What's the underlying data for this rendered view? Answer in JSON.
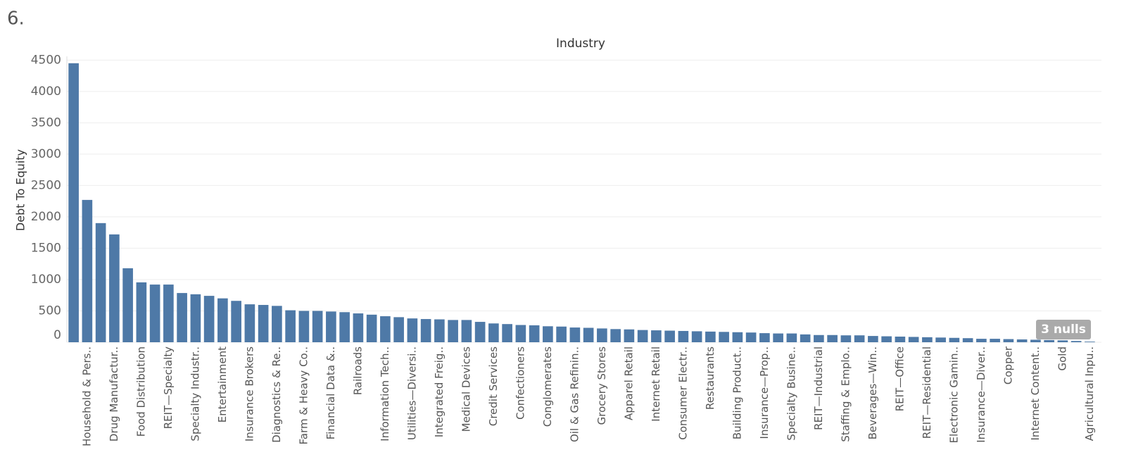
{
  "heading": "6.",
  "chart_data": {
    "type": "bar",
    "title": "Industry",
    "ylabel": "Debt To Equity",
    "annotation": "3 nulls",
    "color": "#4e79a7",
    "grid": true,
    "categories": [
      null,
      "Household & Pers..",
      null,
      "Drug Manufactur..",
      null,
      "Food Distribution",
      null,
      "REIT—Specialty",
      null,
      "Specialty Industr..",
      null,
      "Entertainment",
      null,
      "Insurance Brokers",
      null,
      "Diagnostics & Re..",
      null,
      "Farm & Heavy Co..",
      null,
      "Financial Data &..",
      null,
      "Railroads",
      null,
      "Information Tech..",
      null,
      "Utilities—Diversi..",
      null,
      "Integrated Freig..",
      null,
      "Medical Devices",
      null,
      "Credit Services",
      null,
      "Confectioners",
      null,
      "Conglomerates",
      null,
      "Oil & Gas Refinin..",
      null,
      "Grocery Stores",
      null,
      "Apparel Retail",
      null,
      "Internet Retail",
      null,
      "Consumer Electr..",
      null,
      "Restaurants",
      null,
      "Building Product..",
      null,
      "Insurance—Prop..",
      null,
      "Specialty Busine..",
      null,
      "REIT—Industrial",
      null,
      "Staffing & Emplo..",
      null,
      "Beverages—Win..",
      null,
      "REIT—Office",
      null,
      "REIT—Residential",
      null,
      "Electronic Gamin..",
      null,
      "Insurance—Diver..",
      null,
      "Copper",
      null,
      "Internet Content..",
      null,
      "Gold",
      null,
      "Agricultural Inpu.."
    ],
    "values": [
      4450,
      2270,
      1900,
      1720,
      1180,
      955,
      920,
      920,
      785,
      765,
      740,
      700,
      660,
      605,
      595,
      580,
      510,
      500,
      500,
      490,
      480,
      460,
      440,
      415,
      400,
      380,
      370,
      365,
      355,
      355,
      325,
      300,
      290,
      275,
      270,
      255,
      250,
      235,
      230,
      220,
      210,
      205,
      195,
      190,
      185,
      180,
      175,
      170,
      165,
      160,
      155,
      145,
      140,
      140,
      125,
      115,
      115,
      110,
      110,
      100,
      95,
      90,
      85,
      80,
      75,
      70,
      65,
      55,
      55,
      50,
      45,
      40,
      35,
      30,
      20,
      10
    ],
    "ylim": [
      0,
      4560
    ],
    "yticks": [
      0,
      500,
      1000,
      1500,
      2000,
      2500,
      3000,
      3500,
      4000,
      4500
    ]
  }
}
